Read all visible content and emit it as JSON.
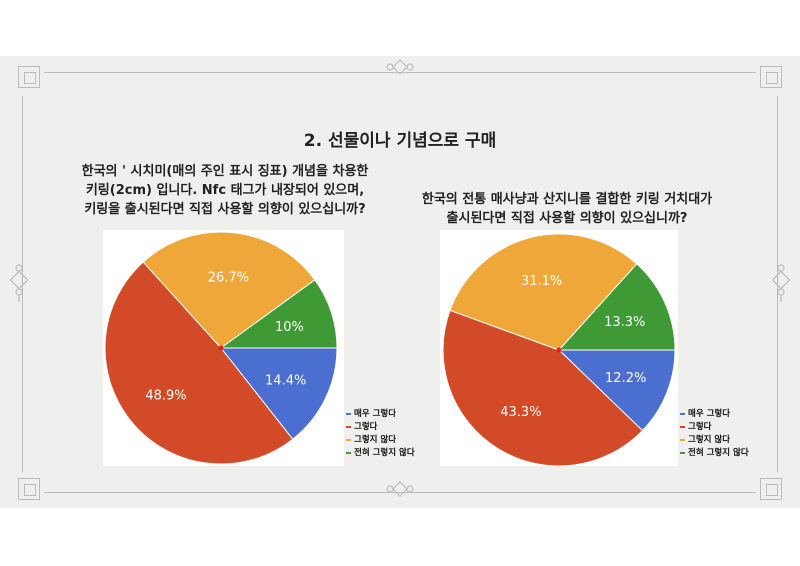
{
  "title": "2. 선물이나 기념으로 구매",
  "charts": [
    {
      "question_lines": [
        "한국의 ' 시치미(매의 주인 표시 징표) 개념을 차용한",
        "키링(2cm) 입니다. Nfc 태그가 내장되어 있으며,",
        "키링을 출시된다면 직접 사용할 의향이 있으십니까?"
      ]
    },
    {
      "question_lines": [
        "한국의 전통 매사냥과 산지니를 결합한 키링 거치대가",
        "출시된다면 직접 사용할 의향이 있으십니까?"
      ]
    }
  ],
  "colors": {
    "blue": "#4a6fd1",
    "red": "#d34a29",
    "orange": "#f0a73a",
    "green": "#3f9a36",
    "frame": "#b9bcb8",
    "slide_bg": "#eff0ee"
  },
  "chart_data": [
    {
      "type": "pie",
      "categories": [
        "매우 그렇다",
        "그렇다",
        "그렇지 않다",
        "전혀 그렇지 않다"
      ],
      "values": [
        14.4,
        48.9,
        26.7,
        10
      ],
      "labels": [
        "14.4%",
        "48.9%",
        "26.7%",
        "10%"
      ],
      "colors": [
        "#4a6fd1",
        "#d34a29",
        "#f0a73a",
        "#3f9a36"
      ],
      "legend": "right-bottom"
    },
    {
      "type": "pie",
      "categories": [
        "매우 그렇다",
        "그렇다",
        "그렇지 않다",
        "전혀 그렇지 않다"
      ],
      "values": [
        12.2,
        43.3,
        31.1,
        13.3
      ],
      "labels": [
        "12.2%",
        "43.3%",
        "31.1%",
        "13.3%"
      ],
      "colors": [
        "#4a6fd1",
        "#d34a29",
        "#f0a73a",
        "#3f9a36"
      ],
      "legend": "right-bottom"
    }
  ]
}
